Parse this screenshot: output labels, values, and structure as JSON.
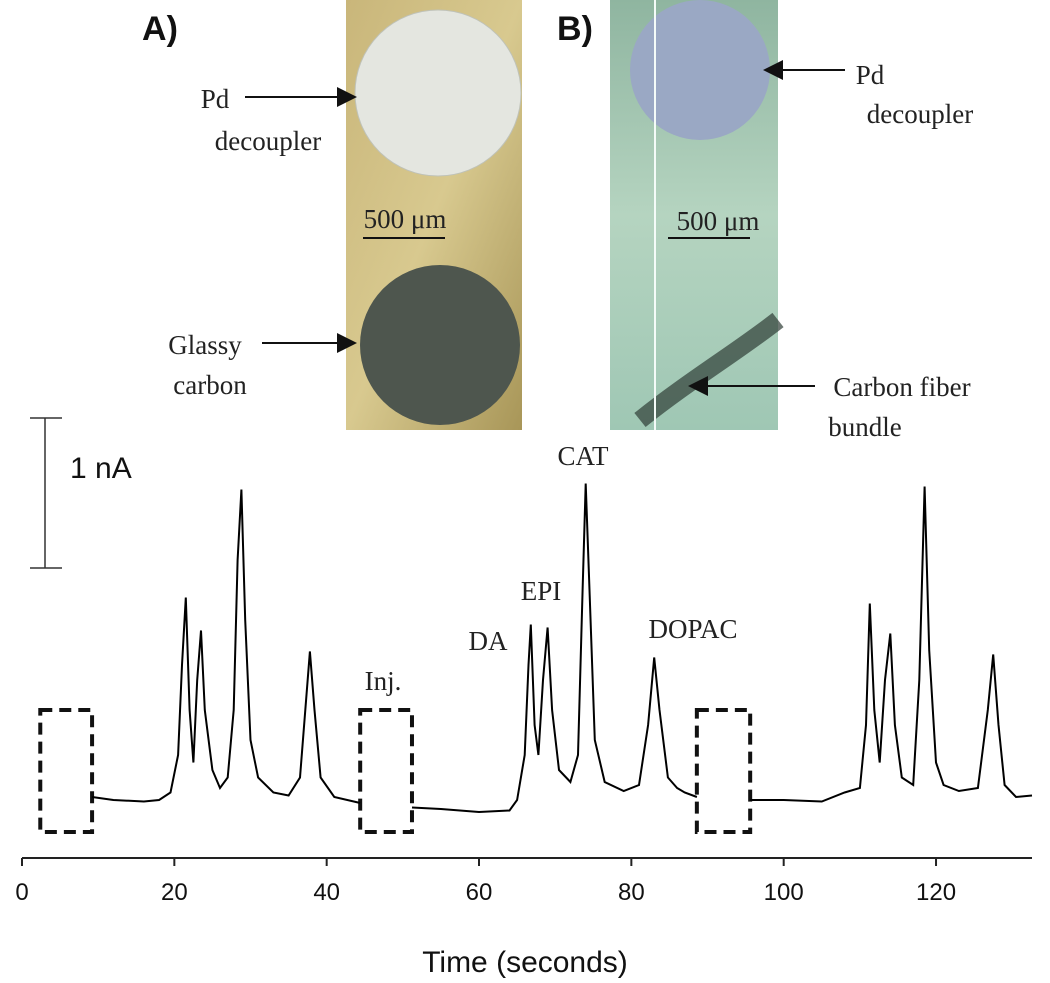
{
  "panels": [
    {
      "tag": "A)",
      "scale": "500 μm",
      "labels": [
        {
          "lines": [
            "Pd",
            "decoupler"
          ]
        },
        {
          "lines": [
            "Glassy",
            "carbon"
          ]
        }
      ]
    },
    {
      "tag": "B)",
      "scale": "500 μm",
      "labels": [
        {
          "lines": [
            "Pd",
            "decoupler"
          ]
        },
        {
          "lines": [
            "Carbon fiber",
            "bundle"
          ]
        }
      ]
    }
  ],
  "chart_data": {
    "type": "line",
    "x_label": "Time (seconds)",
    "scale_bar": {
      "value": 1,
      "label": "1 nA"
    },
    "x": [
      9.2,
      12,
      16,
      18,
      19.5,
      20.5,
      21,
      21.5,
      22,
      22.5,
      23,
      23.5,
      24,
      25,
      26,
      27,
      27.8,
      28.3,
      28.8,
      29.3,
      30,
      31,
      33,
      35,
      36.5,
      37.2,
      37.8,
      38.4,
      39.2,
      41,
      44.4,
      48,
      51.2,
      55,
      60,
      64,
      65,
      66,
      66.5,
      66.8,
      67.3,
      67.8,
      68.4,
      69,
      69.6,
      70.5,
      72,
      73,
      73.6,
      74,
      74.5,
      75.2,
      76.5,
      79,
      81,
      82.2,
      83,
      83.7,
      84.8,
      86,
      87,
      88.6,
      92,
      95.6,
      100,
      105,
      108,
      110,
      110.8,
      111.3,
      111.9,
      112.6,
      113.3,
      114,
      114.6,
      115.5,
      117,
      117.8,
      118.5,
      119.1,
      120,
      121,
      123,
      125.5,
      126.8,
      127.5,
      128.2,
      129,
      130.5,
      132.6
    ],
    "series": [
      {
        "color": "#000000",
        "values": [
          0.02,
          0.0,
          -0.01,
          0.0,
          0.05,
          0.3,
          0.9,
          1.35,
          0.6,
          0.25,
          0.8,
          1.13,
          0.6,
          0.2,
          0.08,
          0.15,
          0.6,
          1.6,
          2.07,
          1.2,
          0.4,
          0.15,
          0.05,
          0.03,
          0.15,
          0.6,
          0.99,
          0.6,
          0.15,
          0.02,
          -0.02,
          null,
          -0.05,
          -0.06,
          -0.08,
          -0.07,
          0.0,
          0.3,
          0.9,
          1.17,
          0.5,
          0.3,
          0.8,
          1.15,
          0.6,
          0.2,
          0.12,
          0.3,
          1.4,
          2.11,
          1.4,
          0.4,
          0.12,
          0.06,
          0.1,
          0.5,
          0.95,
          0.6,
          0.15,
          0.08,
          0.05,
          0.02,
          null,
          0.0,
          0.0,
          -0.01,
          0.05,
          0.08,
          0.5,
          1.31,
          0.6,
          0.25,
          0.8,
          1.11,
          0.5,
          0.15,
          0.1,
          0.8,
          2.09,
          1.0,
          0.25,
          0.1,
          0.06,
          0.08,
          0.6,
          0.97,
          0.5,
          0.1,
          0.02,
          0.03
        ]
      }
    ],
    "regions": [
      [
        2.4,
        9.2
      ],
      [
        44.4,
        51.2
      ],
      [
        88.6,
        95.6
      ]
    ],
    "annotations": [
      "Inj.",
      "DA",
      "EPI",
      "CAT",
      "DOPAC"
    ],
    "xlim": [
      0,
      132.6
    ],
    "ylim": [
      -0.4,
      2.5
    ],
    "xticks": [
      0,
      20,
      40,
      60,
      80,
      100,
      120
    ]
  }
}
